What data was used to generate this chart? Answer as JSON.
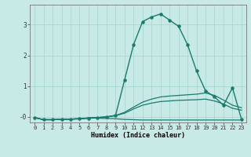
{
  "xlabel": "Humidex (Indice chaleur)",
  "background_color": "#c8eae6",
  "grid_color": "#a8d8d2",
  "line_color": "#1a7a6e",
  "xlim": [
    -0.5,
    23.5
  ],
  "ylim": [
    -0.18,
    3.65
  ],
  "yticks": [
    0,
    1,
    2,
    3
  ],
  "ytick_labels": [
    "-0",
    "1",
    "2",
    "3"
  ],
  "xticks": [
    0,
    1,
    2,
    3,
    4,
    5,
    6,
    7,
    8,
    9,
    10,
    11,
    12,
    13,
    14,
    15,
    16,
    17,
    18,
    19,
    20,
    21,
    22,
    23
  ],
  "series": [
    {
      "x": [
        0,
        1,
        2,
        3,
        4,
        5,
        6,
        7,
        8,
        9,
        10,
        11,
        12,
        13,
        14,
        15,
        16,
        17,
        18,
        19,
        20,
        21,
        22,
        23
      ],
      "y": [
        -0.02,
        -0.09,
        -0.09,
        -0.08,
        -0.07,
        -0.06,
        -0.04,
        -0.02,
        0.0,
        0.05,
        1.2,
        2.35,
        3.1,
        3.25,
        3.35,
        3.15,
        2.95,
        2.35,
        1.5,
        0.85,
        0.65,
        0.38,
        0.95,
        -0.08
      ],
      "marker": true,
      "lw": 1.0
    },
    {
      "x": [
        0,
        1,
        2,
        3,
        4,
        5,
        6,
        7,
        8,
        9,
        10,
        11,
        12,
        13,
        14,
        15,
        16,
        17,
        18,
        19,
        20,
        21,
        22,
        23
      ],
      "y": [
        -0.02,
        -0.09,
        -0.09,
        -0.08,
        -0.07,
        -0.06,
        -0.03,
        -0.02,
        0.0,
        0.05,
        0.15,
        0.32,
        0.48,
        0.58,
        0.65,
        0.68,
        0.7,
        0.72,
        0.74,
        0.78,
        0.7,
        0.55,
        0.38,
        0.3
      ],
      "marker": false,
      "lw": 0.9
    },
    {
      "x": [
        0,
        1,
        2,
        3,
        4,
        5,
        6,
        7,
        8,
        9,
        10,
        11,
        12,
        13,
        14,
        15,
        16,
        17,
        18,
        19,
        20,
        21,
        22,
        23
      ],
      "y": [
        -0.02,
        -0.09,
        -0.09,
        -0.08,
        -0.07,
        -0.06,
        -0.03,
        -0.02,
        0.0,
        0.04,
        0.12,
        0.26,
        0.38,
        0.45,
        0.5,
        0.52,
        0.54,
        0.55,
        0.56,
        0.58,
        0.52,
        0.42,
        0.28,
        0.22
      ],
      "marker": false,
      "lw": 0.9
    },
    {
      "x": [
        0,
        1,
        2,
        3,
        4,
        5,
        6,
        7,
        8,
        9,
        10,
        11,
        12,
        13,
        14,
        15,
        16,
        17,
        18,
        19,
        20,
        21,
        22,
        23
      ],
      "y": [
        -0.02,
        -0.09,
        -0.09,
        -0.08,
        -0.07,
        -0.06,
        -0.04,
        -0.04,
        -0.05,
        -0.06,
        -0.08,
        -0.09,
        -0.1,
        -0.1,
        -0.1,
        -0.1,
        -0.1,
        -0.1,
        -0.1,
        -0.1,
        -0.1,
        -0.1,
        -0.1,
        -0.1
      ],
      "marker": false,
      "lw": 0.9
    }
  ]
}
